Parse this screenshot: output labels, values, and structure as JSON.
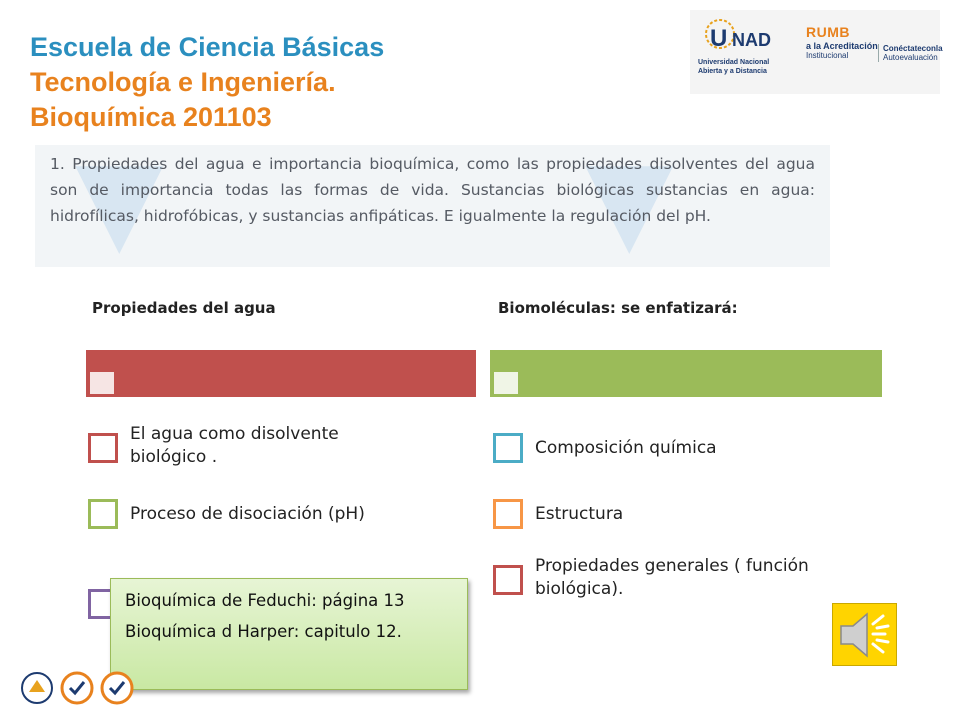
{
  "title": {
    "line1": "Escuela de  Ciencia Básicas",
    "line2": "Tecnología e Ingeniería.",
    "line3": "Bioquímica 201103"
  },
  "logos": {
    "unad": "UNAD",
    "unad_caption": "Universidad Nacional Abierta y a Distancia",
    "rumbo": "RUMB",
    "acreditacion_line1": "a la Acreditación",
    "acreditacion_line2": "Institucional",
    "conecta_line1": "Conéctateconla",
    "conecta_line2": "Autoevaluación"
  },
  "banner": {
    "text": "1. Propiedades del agua e importancia bioquímica, como las propiedades disolventes del agua son de importancia todas las formas de vida. Sustancias biológicas sustancias en agua: hidrofílicas, hidrofóbicas, y sustancias anfipáticas. E igualmente la regulación del pH."
  },
  "left_column": {
    "title": "Propiedades del agua",
    "items": [
      {
        "line1": "El agua como disolvente",
        "line2": "biológico ."
      },
      {
        "line1": "Proceso de disociación (pH)"
      }
    ]
  },
  "right_column": {
    "title": "Biomoléculas: se enfatizará:",
    "items": [
      {
        "line1": "Composición química"
      },
      {
        "line1": "Estructura"
      },
      {
        "line1": "Propiedades generales ( función",
        "line2": "biológica)."
      }
    ]
  },
  "callout": {
    "line1": "Bioquímica de Feduchi:  página 13",
    "line2": "Bioquímica d Harper:   capitulo 12."
  },
  "colors": {
    "title_orange": "#e8821e",
    "title_blue": "#2b8fbf",
    "left_bar": "#c0504d",
    "right_bar": "#9bbb59",
    "square_red": "#c0504d",
    "square_green": "#9bbb59",
    "square_purple": "#8064a2",
    "square_blue": "#4bacc6",
    "square_orange": "#f79646",
    "speaker_yellow": "#ffd400"
  },
  "icons": {
    "speaker": "speaker-icon",
    "footer": [
      "colombia-seal-icon",
      "sgs-certification-icon",
      "sgs-certification-icon"
    ]
  }
}
